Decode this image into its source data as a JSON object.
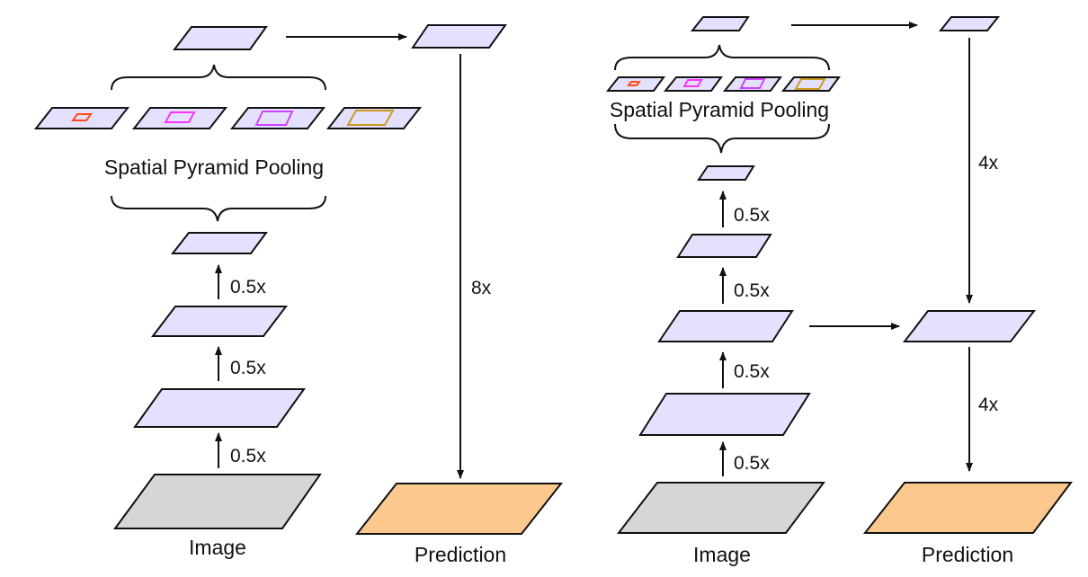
{
  "colors": {
    "feature_fill": "#e4e1fe",
    "image_fill": "#d6d6d6",
    "prediction_fill": "#fbc98e",
    "stroke": "#111111",
    "pool_colors": [
      "#ff4a1c",
      "#ff33ff",
      "#cc44ff",
      "#cc9a1a"
    ]
  },
  "left_diagram": {
    "spp_label": "Spatial Pyramid Pooling",
    "scale_labels": [
      "0.5x",
      "0.5x",
      "0.5x"
    ],
    "upsample_label": "8x",
    "image_label": "Image",
    "prediction_label": "Prediction"
  },
  "right_diagram": {
    "spp_label": "Spatial Pyramid Pooling",
    "scale_labels": [
      "0.5x",
      "0.5x",
      "0.5x",
      "0.5x"
    ],
    "upsample_top_label": "4x",
    "upsample_bottom_label": "4x",
    "image_label": "Image",
    "prediction_label": "Prediction"
  }
}
